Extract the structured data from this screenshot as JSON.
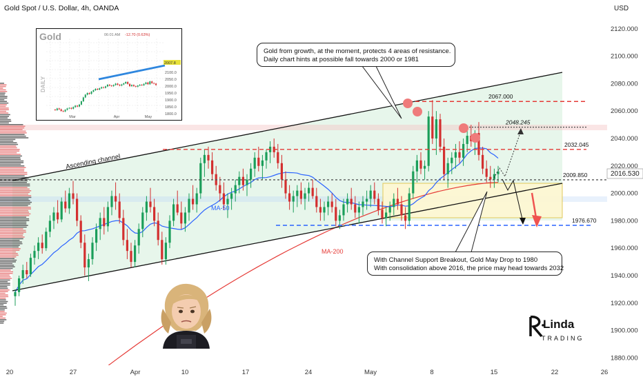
{
  "header": {
    "title": "Gold Spot / U.S. Dollar, 4h, OANDA",
    "currency": "USD"
  },
  "price_axis": {
    "ticks": [
      "2120.000",
      "2100.000",
      "2080.000",
      "2060.000",
      "2040.000",
      "2020.000",
      "2000.000",
      "1980.000",
      "1960.000",
      "1940.000",
      "1920.000",
      "1900.000",
      "1880.000"
    ],
    "current_price": "2016.530"
  },
  "time_axis": {
    "ticks": [
      "20",
      "27",
      "Apr",
      "10",
      "17",
      "24",
      "May",
      "8",
      "15",
      "22",
      "26"
    ]
  },
  "levels": [
    {
      "label": "2067.000",
      "value": 2067.0,
      "color": "#e53935"
    },
    {
      "label": "2048.245",
      "value": 2048.245,
      "color": "#555555"
    },
    {
      "label": "2032.045",
      "value": 2032.045,
      "color": "#e53935"
    },
    {
      "label": "2009.850",
      "value": 2009.85,
      "color": "#555555"
    },
    {
      "label": "1976.670",
      "value": 1976.67,
      "color": "#2962ff"
    }
  ],
  "annotations": {
    "channel_label": "Ascending channel",
    "ma50_label": "MA-50",
    "ma200_label": "MA-200",
    "callout_top": [
      "Gold from growth, at the moment, protects 4 areas of resistance.",
      "Daily chart hints at possible fall towards 2000 or 1981"
    ],
    "callout_bottom": [
      "With Channel Support Breakout, Gold May Drop to 1980",
      "With consolidation above 2016, the price may head towards 2032"
    ]
  },
  "inset": {
    "title": "Gold",
    "side_label": "DAILY",
    "header_text": "06:01 AM",
    "change_text": "-12.70 (0.63%)",
    "price_ticks": [
      "2100.0",
      "2050.0",
      "2000.0",
      "1950.0",
      "1900.0",
      "1850.0",
      "1800.0"
    ],
    "current": "2007.8",
    "time_ticks": [
      "Mar",
      "Apr",
      "May"
    ]
  },
  "branding": {
    "logo_top": "Linda",
    "logo_bottom": "TRADING"
  },
  "colors": {
    "up": "#1b9e5a",
    "down": "#d32f2f",
    "ma50": "#2962ff",
    "ma200": "#e53935",
    "channel_fill": "#dff3e4",
    "box_fill": "#fff8d2",
    "box_stroke": "#e0c44a"
  },
  "chart_data": {
    "type": "candlestick",
    "ylim": [
      1875,
      2130
    ],
    "candles": [
      [
        1925,
        1930,
        1918,
        1928
      ],
      [
        1928,
        1940,
        1925,
        1938
      ],
      [
        1938,
        1948,
        1934,
        1944
      ],
      [
        1944,
        1950,
        1938,
        1941
      ],
      [
        1941,
        1956,
        1939,
        1953
      ],
      [
        1953,
        1962,
        1948,
        1958
      ],
      [
        1958,
        1968,
        1952,
        1964
      ],
      [
        1964,
        1970,
        1956,
        1960
      ],
      [
        1960,
        1975,
        1958,
        1972
      ],
      [
        1972,
        1984,
        1968,
        1980
      ],
      [
        1980,
        1990,
        1974,
        1986
      ],
      [
        1986,
        1995,
        1978,
        1981
      ],
      [
        1981,
        1997,
        1979,
        1994
      ],
      [
        1994,
        2002,
        1986,
        1989
      ],
      [
        1989,
        2004,
        1985,
        2000
      ],
      [
        2000,
        2009,
        1992,
        1996
      ],
      [
        1996,
        2000,
        1976,
        1980
      ],
      [
        1980,
        1984,
        1960,
        1964
      ],
      [
        1964,
        1970,
        1940,
        1946
      ],
      [
        1946,
        1956,
        1936,
        1952
      ],
      [
        1952,
        1968,
        1948,
        1964
      ],
      [
        1964,
        1978,
        1958,
        1974
      ],
      [
        1974,
        1986,
        1966,
        1982
      ],
      [
        1982,
        1990,
        1970,
        1976
      ],
      [
        1976,
        1994,
        1972,
        1990
      ],
      [
        1990,
        2002,
        1984,
        1998
      ],
      [
        1998,
        2008,
        1988,
        1994
      ],
      [
        1994,
        2000,
        1978,
        1982
      ],
      [
        1982,
        1988,
        1962,
        1966
      ],
      [
        1966,
        1974,
        1952,
        1958
      ],
      [
        1958,
        1964,
        1946,
        1950
      ],
      [
        1950,
        1966,
        1946,
        1962
      ],
      [
        1962,
        1978,
        1956,
        1974
      ],
      [
        1974,
        1990,
        1968,
        1986
      ],
      [
        1986,
        1998,
        1980,
        1994
      ],
      [
        1994,
        2004,
        1986,
        1990
      ],
      [
        1990,
        1996,
        1976,
        1980
      ],
      [
        1980,
        1986,
        1962,
        1966
      ],
      [
        1966,
        1972,
        1948,
        1952
      ],
      [
        1952,
        1968,
        1948,
        1964
      ],
      [
        1964,
        1984,
        1960,
        1980
      ],
      [
        1980,
        1996,
        1976,
        1992
      ],
      [
        1992,
        2002,
        1984,
        1986
      ],
      [
        1986,
        1994,
        1974,
        1978
      ],
      [
        1978,
        1990,
        1972,
        1986
      ],
      [
        1986,
        2000,
        1980,
        1996
      ],
      [
        1996,
        2006,
        1988,
        1992
      ],
      [
        1992,
        2004,
        1986,
        2000
      ],
      [
        2000,
        2026,
        1996,
        2022
      ],
      [
        2022,
        2032,
        2012,
        2028
      ],
      [
        2028,
        2034,
        2018,
        2024
      ],
      [
        2024,
        2030,
        2010,
        2014
      ],
      [
        2014,
        2020,
        2002,
        2006
      ],
      [
        2006,
        2012,
        1994,
        2000
      ],
      [
        2000,
        2008,
        1988,
        1992
      ],
      [
        1992,
        2000,
        1982,
        1996
      ],
      [
        1996,
        2004,
        1988,
        2000
      ],
      [
        2000,
        2010,
        1994,
        2006
      ],
      [
        2006,
        2016,
        2000,
        2012
      ],
      [
        2012,
        2018,
        2002,
        2006
      ],
      [
        2006,
        2014,
        1998,
        2010
      ],
      [
        2010,
        2022,
        2004,
        2018
      ],
      [
        2018,
        2030,
        2012,
        2026
      ],
      [
        2026,
        2034,
        2016,
        2020
      ],
      [
        2020,
        2028,
        2010,
        2024
      ],
      [
        2024,
        2032,
        2018,
        2030
      ],
      [
        2030,
        2038,
        2022,
        2034
      ],
      [
        2034,
        2040,
        2026,
        2030
      ],
      [
        2030,
        2036,
        2018,
        2022
      ],
      [
        2022,
        2028,
        2004,
        2010
      ],
      [
        2010,
        2016,
        1996,
        2000
      ],
      [
        2000,
        2006,
        1988,
        1994
      ],
      [
        1994,
        2002,
        1986,
        1998
      ],
      [
        1998,
        2006,
        1990,
        2002
      ],
      [
        2002,
        2008,
        1992,
        1996
      ],
      [
        1996,
        2004,
        1988,
        2000
      ],
      [
        2000,
        2008,
        1994,
        2004
      ],
      [
        2004,
        2010,
        1996,
        1998
      ],
      [
        1998,
        2004,
        1986,
        1990
      ],
      [
        1990,
        1996,
        1980,
        1986
      ],
      [
        1986,
        1994,
        1980,
        1990
      ],
      [
        1990,
        1998,
        1984,
        1994
      ],
      [
        1994,
        2000,
        1986,
        1990
      ],
      [
        1990,
        1996,
        1976,
        1980
      ],
      [
        1980,
        1988,
        1974,
        1984
      ],
      [
        1984,
        1996,
        1980,
        1992
      ],
      [
        1992,
        2000,
        1986,
        1996
      ],
      [
        1996,
        2004,
        1988,
        1992
      ],
      [
        1992,
        1998,
        1982,
        1986
      ],
      [
        1986,
        1994,
        1978,
        1990
      ],
      [
        1990,
        1998,
        1984,
        1994
      ],
      [
        1994,
        2002,
        1988,
        1996
      ],
      [
        1996,
        2006,
        1990,
        2002
      ],
      [
        2002,
        2008,
        1992,
        1996
      ],
      [
        1996,
        2000,
        1984,
        1988
      ],
      [
        1988,
        1994,
        1978,
        1982
      ],
      [
        1982,
        1990,
        1976,
        1986
      ],
      [
        1986,
        1994,
        1980,
        1990
      ],
      [
        1990,
        2000,
        1984,
        1996
      ],
      [
        1996,
        2004,
        1988,
        1992
      ],
      [
        1992,
        1998,
        1980,
        1984
      ],
      [
        1984,
        1990,
        1974,
        1980
      ],
      [
        1980,
        2004,
        1976,
        2000
      ],
      [
        2000,
        2020,
        1996,
        2016
      ],
      [
        2016,
        2028,
        2008,
        2024
      ],
      [
        2024,
        2030,
        2014,
        2018
      ],
      [
        2018,
        2024,
        2010,
        2020
      ],
      [
        2020,
        2060,
        2016,
        2056
      ],
      [
        2056,
        2068,
        2036,
        2040
      ],
      [
        2040,
        2060,
        2028,
        2054
      ],
      [
        2054,
        2058,
        2030,
        2034
      ],
      [
        2034,
        2040,
        2010,
        2014
      ],
      [
        2014,
        2026,
        2004,
        2022
      ],
      [
        2022,
        2030,
        2014,
        2026
      ],
      [
        2026,
        2036,
        2018,
        2030
      ],
      [
        2030,
        2038,
        2022,
        2026
      ],
      [
        2026,
        2040,
        2020,
        2036
      ],
      [
        2036,
        2046,
        2030,
        2042
      ],
      [
        2042,
        2050,
        2034,
        2038
      ],
      [
        2038,
        2046,
        2028,
        2044
      ],
      [
        2044,
        2052,
        2024,
        2028
      ],
      [
        2028,
        2034,
        2014,
        2018
      ],
      [
        2018,
        2024,
        2008,
        2012
      ],
      [
        2012,
        2020,
        2004,
        2010
      ],
      [
        2010,
        2018,
        2004,
        2014
      ],
      [
        2014,
        2020,
        2008,
        2016
      ]
    ],
    "projection": [
      [
        2016,
        2010
      ],
      [
        2006,
        2006
      ],
      [
        2004,
        1982
      ]
    ]
  }
}
